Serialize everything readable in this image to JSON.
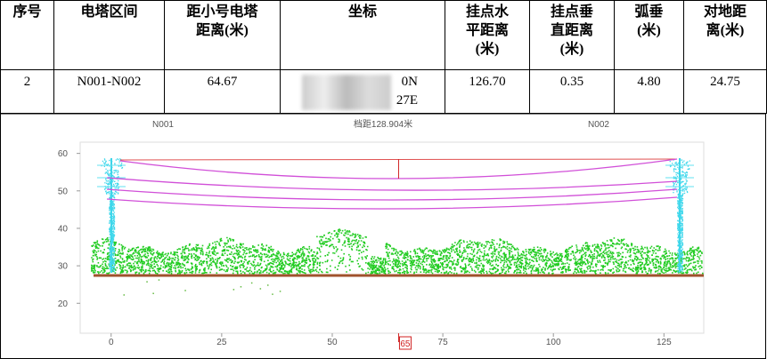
{
  "table": {
    "headers": [
      [
        "序号"
      ],
      [
        "电塔区间"
      ],
      [
        "距小号电塔",
        "距离(米)"
      ],
      [
        "坐标"
      ],
      [
        "挂点水",
        "平距离",
        "(米)"
      ],
      [
        "挂点垂",
        "直距离",
        "(米)"
      ],
      [
        "弧垂",
        "(米)"
      ],
      [
        "对地距",
        "离(米)"
      ]
    ],
    "rows": [
      [
        [
          "2"
        ],
        [
          "N001-N002"
        ],
        [
          "64.67"
        ],
        [
          "0N",
          "27E"
        ],
        [
          "126.70"
        ],
        [
          "0.35"
        ],
        [
          "4.80"
        ],
        [
          "24.75"
        ]
      ]
    ]
  },
  "chart_data": {
    "type": "scatter",
    "labels": [
      "N001",
      "档距128.904米",
      "N002"
    ],
    "xlim": [
      -7,
      134
    ],
    "ylim": [
      12,
      63
    ],
    "xticks": [
      0,
      25,
      50,
      75,
      100,
      125
    ],
    "yticks": [
      20,
      30,
      40,
      50,
      60
    ],
    "marker": 65
  }
}
